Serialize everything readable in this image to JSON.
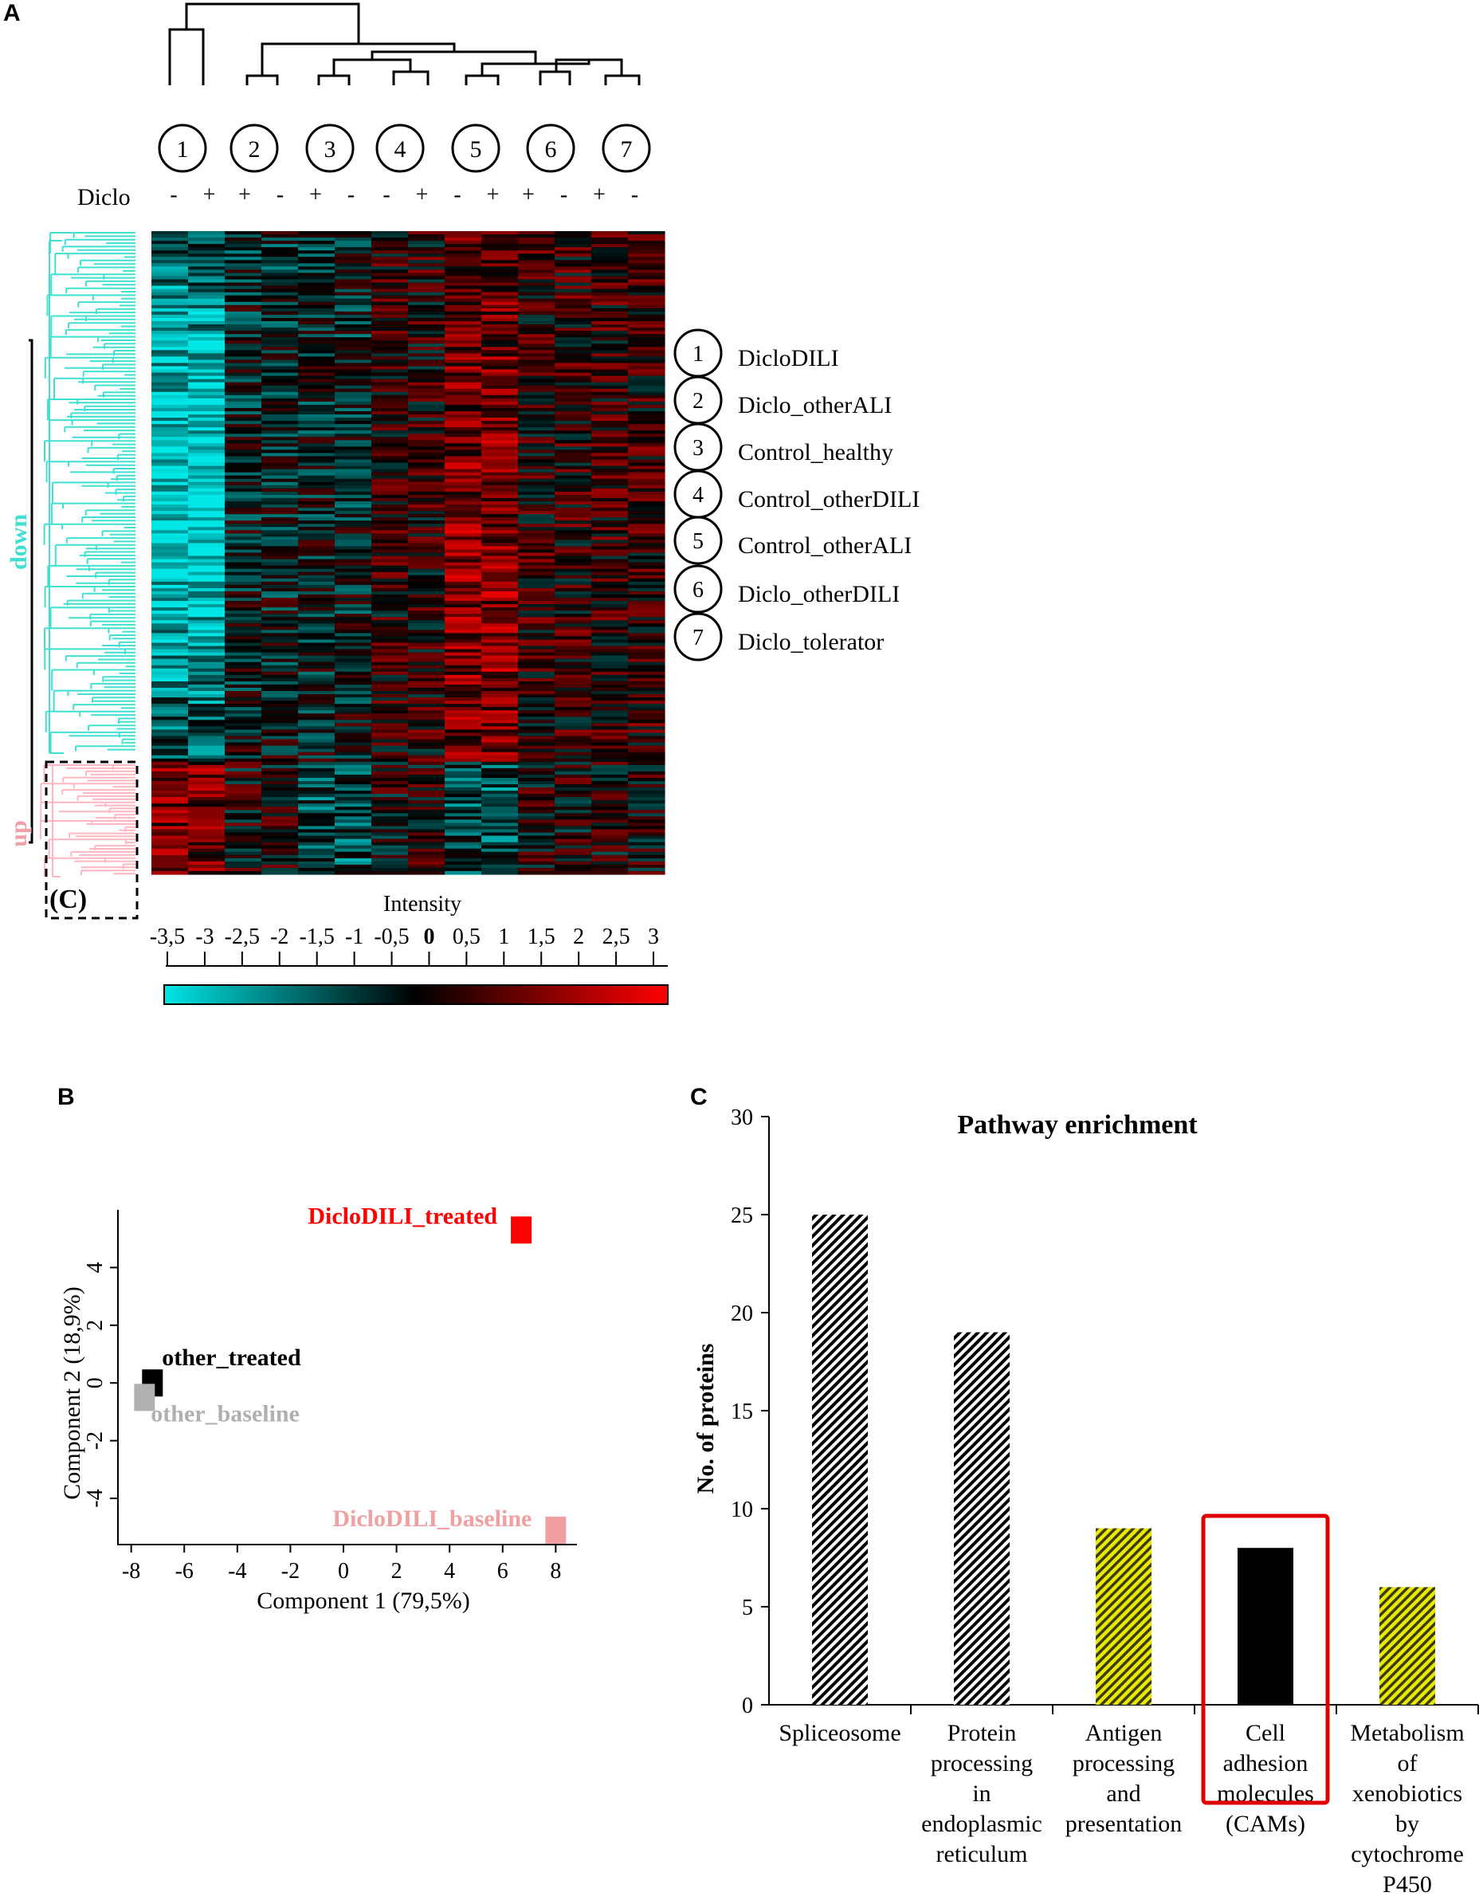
{
  "panels": {
    "a": "A",
    "b": "B",
    "c": "C"
  },
  "heatmap": {
    "diclo_label": "Diclo",
    "group_numbers": [
      "1",
      "2",
      "3",
      "4",
      "5",
      "6",
      "7"
    ],
    "treatment_signs": [
      "-",
      "+",
      "+",
      "-",
      "+",
      "-",
      "-",
      "+",
      "-",
      "+",
      "+",
      "-",
      "+",
      "-"
    ],
    "cluster_labels": {
      "down": "down",
      "up": "up",
      "box": "(C)"
    },
    "legend": [
      {
        "num": "1",
        "name": "DicloDILI"
      },
      {
        "num": "2",
        "name": "Diclo_otherALI"
      },
      {
        "num": "3",
        "name": "Control_healthy"
      },
      {
        "num": "4",
        "name": "Control_otherDILI"
      },
      {
        "num": "5",
        "name": "Control_otherALI"
      },
      {
        "num": "6",
        "name": "Diclo_otherDILI"
      },
      {
        "num": "7",
        "name": "Diclo_tolerator"
      }
    ],
    "scale": {
      "title": "Intensity",
      "ticks": [
        "-3,5",
        "-3",
        "-2,5",
        "-2",
        "-1,5",
        "-1",
        "-0,5",
        "0",
        "0,5",
        "1",
        "1,5",
        "2",
        "2,5",
        "3"
      ],
      "colors": {
        "low": "#00e5e5",
        "mid": "#000000",
        "high": "#ff0000"
      }
    },
    "colors": {
      "down": "#40e0d0",
      "up": "#ffb6c1"
    }
  },
  "chart_data": [
    {
      "type": "scatter",
      "panel": "B",
      "xlabel": "Component 1 (79,5%)",
      "ylabel": "Component 2 (18,9%)",
      "xlim": [
        -8.5,
        8.8
      ],
      "ylim": [
        -5.6,
        6
      ],
      "xticks": [
        -8,
        -6,
        -4,
        -2,
        0,
        2,
        4,
        6,
        8
      ],
      "yticks": [
        -4,
        -2,
        0,
        2,
        4
      ],
      "points": [
        {
          "label": "DicloDILI_treated",
          "x": 6.7,
          "y": 5.3,
          "color": "#ff0000"
        },
        {
          "label": "other_treated",
          "x": -7.2,
          "y": 0.0,
          "color": "#000000"
        },
        {
          "label": "other_baseline",
          "x": -7.5,
          "y": -0.5,
          "color": "#b0b0b0"
        },
        {
          "label": "DicloDILI_baseline",
          "x": 8.0,
          "y": -5.1,
          "color": "#f0a0a0"
        }
      ]
    },
    {
      "type": "bar",
      "panel": "C",
      "title": "Pathway enrichment",
      "ylabel": "No. of proteins",
      "ylim": [
        0,
        30
      ],
      "yticks": [
        0,
        5,
        10,
        15,
        20,
        25,
        30
      ],
      "categories": [
        [
          "Spliceosome"
        ],
        [
          "Protein",
          "processing",
          "in",
          "endoplasmic",
          "reticulum"
        ],
        [
          "Antigen",
          "processing",
          "and",
          "presentation"
        ],
        [
          "Cell",
          "adhesion",
          "molecules",
          "(CAMs)"
        ],
        [
          "Metabolism",
          "of",
          "xenobiotics",
          "by",
          "cytochrome",
          "P450"
        ]
      ],
      "values": [
        25,
        19,
        9,
        8,
        6
      ],
      "patterns": [
        "black-hatch",
        "black-hatch",
        "yellow-hatch",
        "solid-black",
        "yellow-hatch"
      ],
      "highlight_index": 3,
      "colors": {
        "hatch_dark": "#000000",
        "hatch_yellow": "#d4d400",
        "highlight": "#e00000"
      }
    }
  ]
}
